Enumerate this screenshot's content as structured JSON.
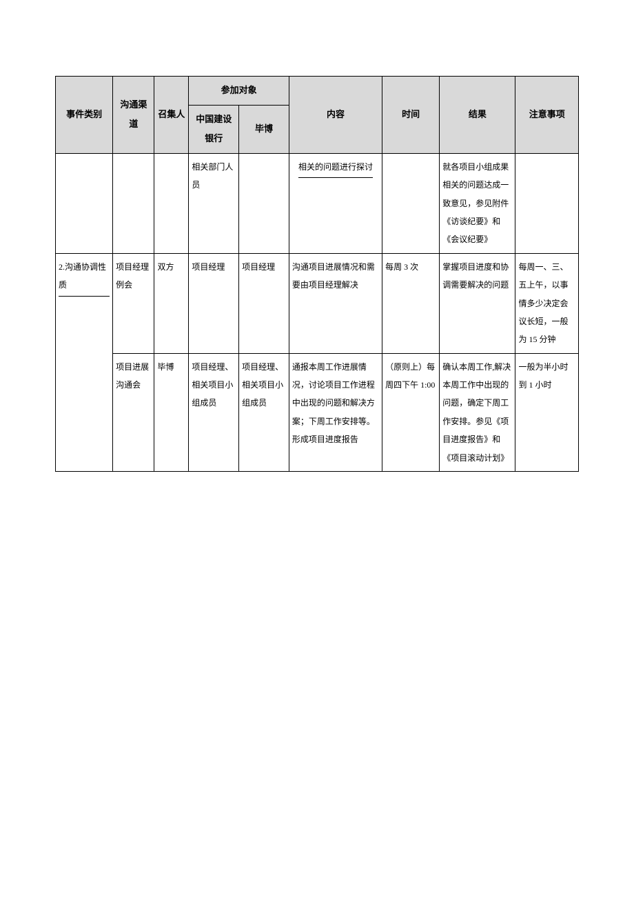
{
  "headers": {
    "category": "事件类别",
    "channel": "沟通渠道",
    "convene": "召集人",
    "participants_group": "参加对象",
    "participant_ccb": "中国建设银行",
    "participant_bb": "毕博",
    "content": "内容",
    "time": "时间",
    "result": "结果",
    "notes": "注意事项"
  },
  "rows": [
    {
      "category": "",
      "channel": "",
      "convene": "",
      "ccb": "相关部门人员",
      "bb": "",
      "content": "相关的问题进行探讨",
      "content_underline": true,
      "time": "",
      "result": "就各项目小组成果相关的问题达成一致意见，参见附件《访谈纪要》和《会议纪要》",
      "notes": ""
    },
    {
      "category": "2.沟通协调性质",
      "category_underline": true,
      "category_rowspan": 2,
      "channel": "项目经理例会",
      "convene": "双方",
      "ccb": "项目经理",
      "bb": "项目经理",
      "content": "沟通项目进展情况和需要由项目经理解决",
      "time": "每周 3 次",
      "result": "掌握项目进度和协调需要解决的问题",
      "notes": "每周一、三、五上午，以事情多少决定会议长短，一般为 15 分钟"
    },
    {
      "channel": "项目进展沟通会",
      "convene": "毕博",
      "ccb": "项目经理、相关项目小组成员",
      "bb": "项目经理、相关项目小组成员",
      "content": "通报本周工作进展情况，讨论项目工作进程中出现的问题和解决方案；下周工作安排等。形成项目进度报告",
      "time": "（原则上）每周四下午 1:00",
      "result": "确认本周工作,解决本周工作中出现的问题，确定下周工作安排。参见《项目进度报告》和《项目滚动计划》",
      "notes": "一般为半小时到 1 小时"
    }
  ]
}
